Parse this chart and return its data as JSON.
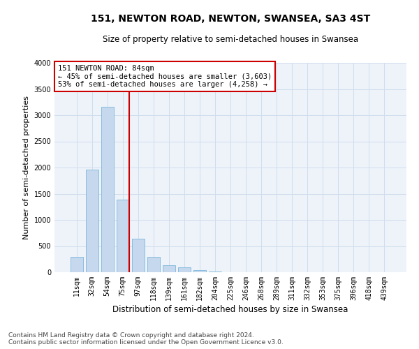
{
  "title": "151, NEWTON ROAD, NEWTON, SWANSEA, SA3 4ST",
  "subtitle": "Size of property relative to semi-detached houses in Swansea",
  "xlabel": "Distribution of semi-detached houses by size in Swansea",
  "ylabel": "Number of semi-detached properties",
  "categories": [
    "11sqm",
    "32sqm",
    "54sqm",
    "75sqm",
    "97sqm",
    "118sqm",
    "139sqm",
    "161sqm",
    "182sqm",
    "204sqm",
    "225sqm",
    "246sqm",
    "268sqm",
    "289sqm",
    "311sqm",
    "332sqm",
    "353sqm",
    "375sqm",
    "396sqm",
    "418sqm",
    "439sqm"
  ],
  "values": [
    300,
    1960,
    3160,
    1390,
    640,
    290,
    135,
    90,
    35,
    15,
    5,
    3,
    1,
    0,
    0,
    0,
    0,
    0,
    0,
    0,
    0
  ],
  "bar_color": "#c5d8ee",
  "bar_edge_color": "#6aaed6",
  "grid_color": "#d0dded",
  "background_color": "#eef3fa",
  "annotation_text": "151 NEWTON ROAD: 84sqm\n← 45% of semi-detached houses are smaller (3,603)\n53% of semi-detached houses are larger (4,258) →",
  "annotation_box_color": "#ffffff",
  "annotation_box_edge": "#cc0000",
  "vline_x": 3.4,
  "vline_color": "#cc0000",
  "ylim": [
    0,
    4000
  ],
  "yticks": [
    0,
    500,
    1000,
    1500,
    2000,
    2500,
    3000,
    3500,
    4000
  ],
  "footer": "Contains HM Land Registry data © Crown copyright and database right 2024.\nContains public sector information licensed under the Open Government Licence v3.0.",
  "title_fontsize": 10,
  "subtitle_fontsize": 8.5,
  "axis_label_fontsize": 8,
  "tick_fontsize": 7,
  "footer_fontsize": 6.5,
  "annot_fontsize": 7.5
}
